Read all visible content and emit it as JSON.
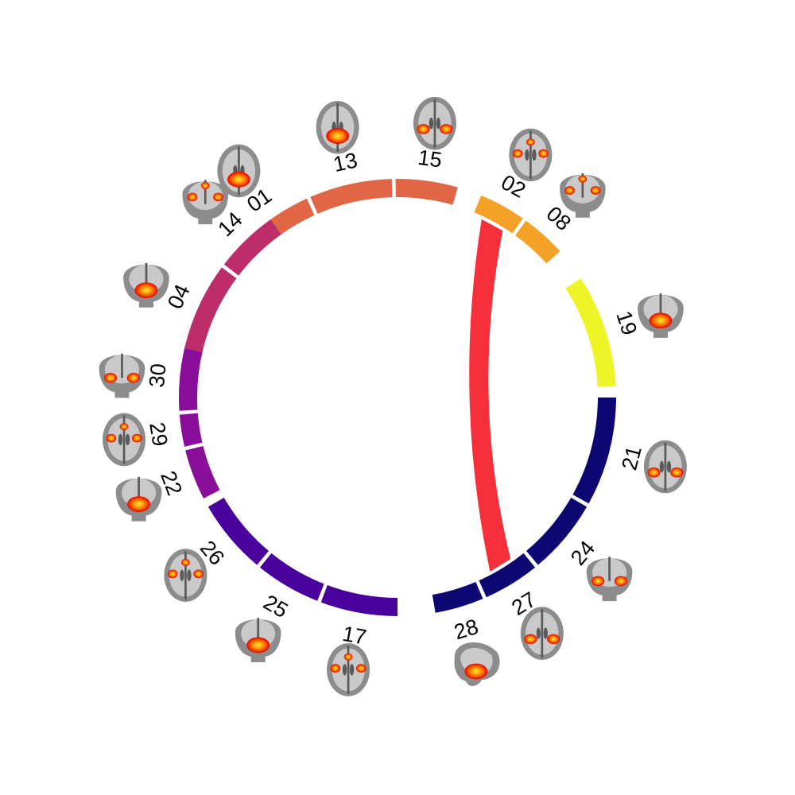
{
  "segments": [
    {
      "label": "01",
      "color": "#e06646",
      "view": "axial"
    },
    {
      "label": "13",
      "color": "#e06646",
      "view": "axial"
    },
    {
      "label": "15",
      "color": "#e06646",
      "view": "axial"
    },
    {
      "label": "02",
      "color": "#f4a127",
      "view": "axial"
    },
    {
      "label": "08",
      "color": "#f4a127",
      "view": "coronal"
    },
    {
      "label": "19",
      "color": "#eef426",
      "view": "coronal"
    },
    {
      "label": "21",
      "color": "#0d0772",
      "view": "axial"
    },
    {
      "label": "24",
      "color": "#0d0772",
      "view": "coronal"
    },
    {
      "label": "27",
      "color": "#0d0772",
      "view": "axial"
    },
    {
      "label": "28",
      "color": "#0d0772",
      "view": "sagittal"
    },
    {
      "label": "17",
      "color": "#4a029c",
      "view": "axial"
    },
    {
      "label": "25",
      "color": "#4a029c",
      "view": "coronal"
    },
    {
      "label": "26",
      "color": "#4a029c",
      "view": "axial"
    },
    {
      "label": "22",
      "color": "#890f9a",
      "view": "coronal"
    },
    {
      "label": "29",
      "color": "#890f9a",
      "view": "axial"
    },
    {
      "label": "30",
      "color": "#890f9a",
      "view": "coronal"
    },
    {
      "label": "04",
      "color": "#bd2d6a",
      "view": "coronal"
    },
    {
      "label": "14",
      "color": "#bd2d6a",
      "view": "coronal"
    }
  ],
  "connections": [
    {
      "from": "02",
      "to": "27",
      "color": "#f6303a"
    }
  ],
  "activation_colors": {
    "core": "#ffee33",
    "mid": "#ff7a00",
    "edge": "#e60000"
  }
}
